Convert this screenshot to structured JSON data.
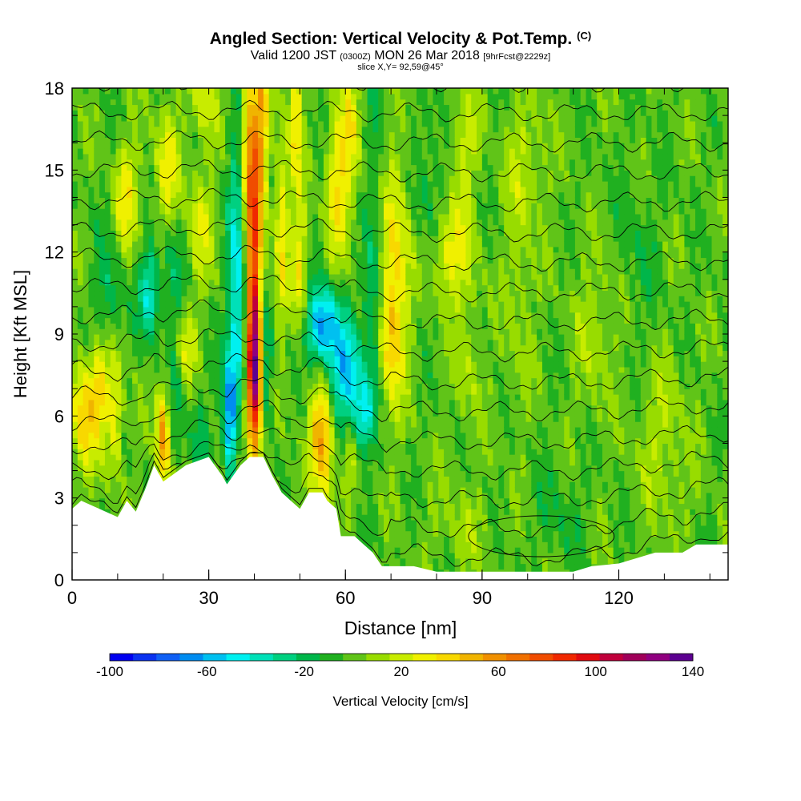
{
  "header": {
    "title": "Angled Section: Vertical Velocity & Pot.Temp.",
    "title_suffix": "(C)",
    "subtitle_valid": "Valid 1200 JST",
    "subtitle_z": "(0300Z)",
    "subtitle_date": "MON 26 Mar 2018",
    "subtitle_fcst": "[9hrFcst@2229z]",
    "slice": "slice X,Y= 92,59@45°"
  },
  "chart_data": {
    "type": "heatmap",
    "title": "Angled Section: Vertical Velocity & Pot.Temp.",
    "xlabel": "Distance [nm]",
    "ylabel": "Height [Kft MSL]",
    "xlim": [
      0,
      144
    ],
    "ylim": [
      0,
      18
    ],
    "xticks": [
      0,
      30,
      60,
      90,
      120
    ],
    "yticks": [
      0,
      3,
      6,
      9,
      12,
      15,
      18
    ],
    "terrain_kft": [
      [
        0,
        2.6
      ],
      [
        2,
        2.9
      ],
      [
        10,
        2.3
      ],
      [
        12,
        2.9
      ],
      [
        14,
        2.5
      ],
      [
        16,
        3.3
      ],
      [
        18,
        4.2
      ],
      [
        20,
        3.6
      ],
      [
        25,
        4.2
      ],
      [
        30,
        4.5
      ],
      [
        33,
        3.8
      ],
      [
        34,
        3.5
      ],
      [
        37,
        4.2
      ],
      [
        39,
        4.5
      ],
      [
        42,
        4.5
      ],
      [
        44,
        3.8
      ],
      [
        46,
        3.2
      ],
      [
        48,
        2.9
      ],
      [
        50,
        2.6
      ],
      [
        52,
        3.2
      ],
      [
        55,
        3.2
      ],
      [
        56,
        2.9
      ],
      [
        58,
        2.6
      ],
      [
        59,
        1.6
      ],
      [
        62,
        1.6
      ],
      [
        64,
        1.3
      ],
      [
        66,
        1.0
      ],
      [
        68,
        0.5
      ],
      [
        75,
        0.5
      ],
      [
        80,
        0.3
      ],
      [
        90,
        0.3
      ],
      [
        100,
        0.3
      ],
      [
        110,
        0.3
      ],
      [
        114,
        0.5
      ],
      [
        120,
        0.6
      ],
      [
        128,
        1.0
      ],
      [
        134,
        1.0
      ],
      [
        137,
        1.3
      ],
      [
        144,
        1.3
      ]
    ],
    "w_features": [
      {
        "x": 40,
        "y": 7.5,
        "sx": 1.2,
        "sy": 2.2,
        "w": 125
      },
      {
        "x": 40,
        "y": 12.0,
        "sx": 1.0,
        "sy": 3.0,
        "w": 60
      },
      {
        "x": 38.5,
        "y": 15.5,
        "sx": 1.2,
        "sy": 3.0,
        "w": 55
      },
      {
        "x": 41.5,
        "y": 16.5,
        "sx": 1.2,
        "sy": 2.5,
        "w": 50
      },
      {
        "x": 37,
        "y": 5.5,
        "sx": 1.0,
        "sy": 1.5,
        "w": 30
      },
      {
        "x": 36.5,
        "y": 10.0,
        "sx": 1.5,
        "sy": 4.5,
        "w": -55
      },
      {
        "x": 34.5,
        "y": 6.0,
        "sx": 1.0,
        "sy": 1.5,
        "w": -65
      },
      {
        "x": 42.5,
        "y": 7.5,
        "sx": 1.0,
        "sy": 1.5,
        "w": -35
      },
      {
        "x": 55,
        "y": 9.3,
        "sx": 2.5,
        "sy": 1.0,
        "w": -70
      },
      {
        "x": 60,
        "y": 7.5,
        "sx": 2.5,
        "sy": 1.3,
        "w": -55
      },
      {
        "x": 64,
        "y": 6.0,
        "sx": 1.5,
        "sy": 1.0,
        "w": -45
      },
      {
        "x": 66,
        "y": 10.0,
        "sx": 1.5,
        "sy": 2.0,
        "w": -30
      },
      {
        "x": 55.5,
        "y": 5.0,
        "sx": 1.5,
        "sy": 1.5,
        "w": 50
      },
      {
        "x": 53.5,
        "y": 5.5,
        "sx": 1.2,
        "sy": 1.2,
        "w": 30
      },
      {
        "x": 20,
        "y": 5.2,
        "sx": 1.0,
        "sy": 1.3,
        "w": 65
      },
      {
        "x": 2.5,
        "y": 6.0,
        "sx": 1.8,
        "sy": 1.5,
        "w": 45
      },
      {
        "x": 6,
        "y": 7.0,
        "sx": 1.5,
        "sy": 1.2,
        "w": 40
      },
      {
        "x": 9.5,
        "y": 6.0,
        "sx": 1.2,
        "sy": 1.5,
        "w": 35
      },
      {
        "x": 17,
        "y": 10.5,
        "sx": 1.5,
        "sy": 1.2,
        "w": -45
      },
      {
        "x": 8,
        "y": 10.5,
        "sx": 2.0,
        "sy": 1.5,
        "w": -20
      },
      {
        "x": 23,
        "y": 7.0,
        "sx": 1.5,
        "sy": 2.0,
        "w": -15
      },
      {
        "x": 28,
        "y": 5.2,
        "sx": 1.5,
        "sy": 1.5,
        "w": -15
      },
      {
        "x": 46,
        "y": 13.0,
        "sx": 1.0,
        "sy": 2.5,
        "w": 35
      },
      {
        "x": 50,
        "y": 11.5,
        "sx": 1.2,
        "sy": 2.0,
        "w": 35
      },
      {
        "x": 49,
        "y": 17.0,
        "sx": 1.0,
        "sy": 1.5,
        "w": 40
      },
      {
        "x": 58,
        "y": 14.5,
        "sx": 1.5,
        "sy": 2.0,
        "w": 35
      },
      {
        "x": 61,
        "y": 16.0,
        "sx": 1.5,
        "sy": 2.0,
        "w": 30
      },
      {
        "x": 70,
        "y": 9.0,
        "sx": 2.0,
        "sy": 2.0,
        "w": 40
      },
      {
        "x": 71,
        "y": 12.5,
        "sx": 2.5,
        "sy": 2.5,
        "w": 30
      },
      {
        "x": 67,
        "y": 14.5,
        "sx": 1.5,
        "sy": 2.5,
        "w": -15
      },
      {
        "x": 83,
        "y": 12.0,
        "sx": 3.0,
        "sy": 1.2,
        "w": 35
      },
      {
        "x": 86,
        "y": 16.0,
        "sx": 2.0,
        "sy": 1.5,
        "w": 25
      },
      {
        "x": 87,
        "y": 8.0,
        "sx": 2.0,
        "sy": 2.0,
        "w": 15
      },
      {
        "x": 98,
        "y": 11.0,
        "sx": 2.0,
        "sy": 3.0,
        "w": 15
      },
      {
        "x": 100,
        "y": 15.5,
        "sx": 3.0,
        "sy": 1.5,
        "w": 15
      },
      {
        "x": 78,
        "y": 14.5,
        "sx": 2.5,
        "sy": 2.5,
        "w": -15
      },
      {
        "x": 12,
        "y": 14.0,
        "sx": 2.0,
        "sy": 1.5,
        "w": 30
      },
      {
        "x": 21,
        "y": 15.0,
        "sx": 2.0,
        "sy": 1.5,
        "w": 30
      },
      {
        "x": 28,
        "y": 13.0,
        "sx": 2.0,
        "sy": 1.5,
        "w": 25
      },
      {
        "x": 22,
        "y": 11.5,
        "sx": 2.0,
        "sy": 1.5,
        "w": -15
      },
      {
        "x": 25,
        "y": 8.5,
        "sx": 1.5,
        "sy": 1.0,
        "w": 30
      },
      {
        "x": 29,
        "y": 17.5,
        "sx": 2.0,
        "sy": 1.0,
        "w": 25
      },
      {
        "x": 61,
        "y": 4.0,
        "sx": 1.0,
        "sy": 1.0,
        "w": 20
      },
      {
        "x": 85,
        "y": 2.0,
        "sx": 5.0,
        "sy": 1.0,
        "w": 10
      },
      {
        "x": 107,
        "y": 2.5,
        "sx": 4.0,
        "sy": 1.2,
        "w": -10
      },
      {
        "x": 130,
        "y": 5.0,
        "sx": 4.0,
        "sy": 2.0,
        "w": 15
      },
      {
        "x": 124,
        "y": 12.0,
        "sx": 3.0,
        "sy": 2.0,
        "w": -10
      },
      {
        "x": 115,
        "y": 9.0,
        "sx": 3.0,
        "sy": 2.0,
        "w": 15
      }
    ],
    "theta_levels": 17,
    "colorbar": {
      "label": "Vertical Velocity [cm/s]",
      "ticks": [
        "-100",
        "-60",
        "-20",
        "20",
        "60",
        "100",
        "140"
      ],
      "min": -100,
      "max": 140,
      "step": 10,
      "colors": [
        "#0000f0",
        "#0a32f0",
        "#1060f5",
        "#008cf0",
        "#00c0f0",
        "#00f0f0",
        "#00e0b8",
        "#00d080",
        "#00b64a",
        "#20b020",
        "#60c418",
        "#98dc00",
        "#c8ec00",
        "#f0f000",
        "#f8d800",
        "#f0b400",
        "#f09000",
        "#f07000",
        "#f04c00",
        "#f02800",
        "#e00a10",
        "#c0003c",
        "#a0005a",
        "#900080",
        "#5c0090"
      ]
    }
  }
}
